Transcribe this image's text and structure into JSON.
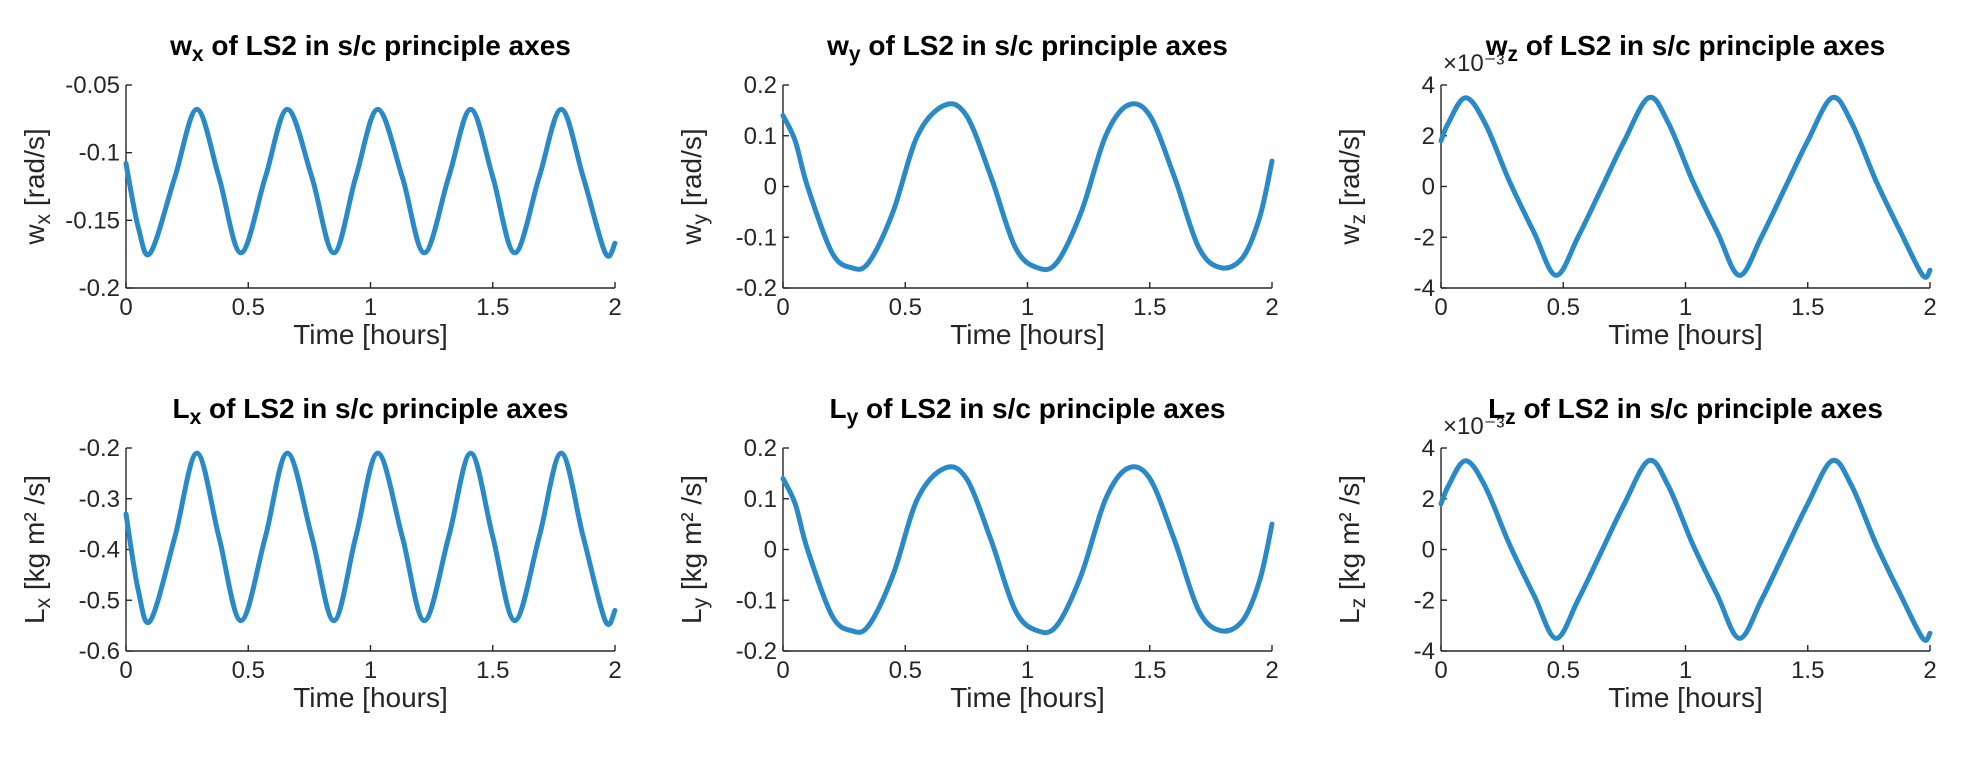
{
  "chart_data": [
    {
      "type": "line",
      "title_main": "w",
      "title_sub": "x",
      "title_rest": " of LS2 in s/c principle axes",
      "ylabel_main": "w",
      "ylabel_sub": "x",
      "ylabel_rest": " [rad/s]",
      "xlabel": "Time [hours]",
      "xlim": [
        0,
        2
      ],
      "ylim": [
        -0.2,
        -0.05
      ],
      "xticks": [
        "0",
        "0.5",
        "1",
        "1.5",
        "2"
      ],
      "yticks": [
        "-0.2",
        "-0.15",
        "-0.1",
        "-0.05"
      ],
      "exponent": "",
      "series": [
        {
          "color": "#2a8ac8",
          "x": [
            0,
            0.05,
            0.1,
            0.2,
            0.29,
            0.38,
            0.47,
            0.57,
            0.66,
            0.76,
            0.85,
            0.94,
            1.03,
            1.13,
            1.22,
            1.32,
            1.41,
            1.5,
            1.59,
            1.69,
            1.78,
            1.87,
            1.96,
            2.0
          ],
          "y": [
            -0.108,
            -0.155,
            -0.174,
            -0.118,
            -0.068,
            -0.118,
            -0.174,
            -0.118,
            -0.068,
            -0.118,
            -0.174,
            -0.118,
            -0.068,
            -0.118,
            -0.174,
            -0.118,
            -0.068,
            -0.118,
            -0.174,
            -0.118,
            -0.068,
            -0.118,
            -0.174,
            -0.167
          ]
        }
      ]
    },
    {
      "type": "line",
      "title_main": "w",
      "title_sub": "y",
      "title_rest": " of LS2 in s/c principle axes",
      "ylabel_main": "w",
      "ylabel_sub": "y",
      "ylabel_rest": " [rad/s]",
      "xlabel": "Time [hours]",
      "xlim": [
        0,
        2
      ],
      "ylim": [
        -0.2,
        0.2
      ],
      "xticks": [
        "0",
        "0.5",
        "1",
        "1.5",
        "2"
      ],
      "yticks": [
        "-0.2",
        "-0.1",
        "0",
        "0.1",
        "0.2"
      ],
      "exponent": "",
      "series": [
        {
          "color": "#2a8ac8",
          "x": [
            0,
            0.05,
            0.1,
            0.2,
            0.28,
            0.35,
            0.45,
            0.55,
            0.66,
            0.75,
            0.85,
            0.95,
            1.04,
            1.12,
            1.22,
            1.32,
            1.41,
            1.5,
            1.6,
            1.7,
            1.79,
            1.88,
            1.95,
            2.0
          ],
          "y": [
            0.14,
            0.09,
            0.0,
            -0.13,
            -0.16,
            -0.15,
            -0.05,
            0.1,
            0.16,
            0.14,
            0.02,
            -0.12,
            -0.16,
            -0.15,
            -0.05,
            0.1,
            0.16,
            0.14,
            0.02,
            -0.12,
            -0.16,
            -0.14,
            -0.06,
            0.05
          ]
        }
      ]
    },
    {
      "type": "line",
      "title_main": "w",
      "title_sub": "z",
      "title_rest": " of LS2 in s/c principle axes",
      "ylabel_main": "w",
      "ylabel_sub": "z",
      "ylabel_rest": " [rad/s]",
      "xlabel": "Time [hours]",
      "xlim": [
        0,
        2
      ],
      "ylim": [
        -4,
        4
      ],
      "xticks": [
        "0",
        "0.5",
        "1",
        "1.5",
        "2"
      ],
      "yticks": [
        "-4",
        "-2",
        "0",
        "2",
        "4"
      ],
      "exponent": "×10⁻³",
      "series": [
        {
          "color": "#2a8ac8",
          "x": [
            0,
            0.03,
            0.1,
            0.18,
            0.28,
            0.38,
            0.47,
            0.56,
            0.66,
            0.75,
            0.85,
            0.93,
            1.03,
            1.13,
            1.22,
            1.31,
            1.41,
            1.5,
            1.6,
            1.68,
            1.78,
            1.88,
            1.97,
            2.0
          ],
          "y": [
            1.8,
            2.5,
            3.5,
            2.5,
            0.2,
            -1.8,
            -3.5,
            -2.0,
            0.0,
            1.8,
            3.5,
            2.5,
            0.2,
            -1.8,
            -3.5,
            -2.0,
            0.0,
            1.8,
            3.5,
            2.5,
            0.2,
            -1.8,
            -3.5,
            -3.3
          ]
        }
      ]
    },
    {
      "type": "line",
      "title_main": "L",
      "title_sub": "x",
      "title_rest": " of LS2 in s/c principle axes",
      "ylabel_main": "L",
      "ylabel_sub": "x",
      "ylabel_rest": " [kg m² /s]",
      "xlabel": "Time [hours]",
      "xlim": [
        0,
        2
      ],
      "ylim": [
        -0.6,
        -0.2
      ],
      "xticks": [
        "0",
        "0.5",
        "1",
        "1.5",
        "2"
      ],
      "yticks": [
        "-0.6",
        "-0.5",
        "-0.4",
        "-0.3",
        "-0.2"
      ],
      "exponent": "",
      "series": [
        {
          "color": "#2a8ac8",
          "x": [
            0,
            0.05,
            0.1,
            0.2,
            0.29,
            0.38,
            0.47,
            0.57,
            0.66,
            0.76,
            0.85,
            0.94,
            1.03,
            1.13,
            1.22,
            1.32,
            1.41,
            1.5,
            1.59,
            1.69,
            1.78,
            1.87,
            1.96,
            2.0
          ],
          "y": [
            -0.33,
            -0.48,
            -0.54,
            -0.375,
            -0.21,
            -0.375,
            -0.54,
            -0.375,
            -0.21,
            -0.375,
            -0.54,
            -0.375,
            -0.21,
            -0.375,
            -0.54,
            -0.375,
            -0.21,
            -0.375,
            -0.54,
            -0.375,
            -0.21,
            -0.375,
            -0.54,
            -0.52
          ]
        }
      ]
    },
    {
      "type": "line",
      "title_main": "L",
      "title_sub": "y",
      "title_rest": " of LS2 in s/c principle axes",
      "ylabel_main": "L",
      "ylabel_sub": "y",
      "ylabel_rest": " [kg m² /s]",
      "xlabel": "Time [hours]",
      "xlim": [
        0,
        2
      ],
      "ylim": [
        -0.2,
        0.2
      ],
      "xticks": [
        "0",
        "0.5",
        "1",
        "1.5",
        "2"
      ],
      "yticks": [
        "-0.2",
        "-0.1",
        "0",
        "0.1",
        "0.2"
      ],
      "exponent": "",
      "series": [
        {
          "color": "#2a8ac8",
          "x": [
            0,
            0.05,
            0.1,
            0.2,
            0.28,
            0.35,
            0.45,
            0.55,
            0.66,
            0.75,
            0.85,
            0.95,
            1.04,
            1.12,
            1.22,
            1.32,
            1.41,
            1.5,
            1.6,
            1.7,
            1.79,
            1.88,
            1.95,
            2.0
          ],
          "y": [
            0.14,
            0.09,
            0.0,
            -0.13,
            -0.16,
            -0.15,
            -0.05,
            0.1,
            0.16,
            0.14,
            0.02,
            -0.12,
            -0.16,
            -0.15,
            -0.05,
            0.1,
            0.16,
            0.14,
            0.02,
            -0.12,
            -0.16,
            -0.14,
            -0.06,
            0.05
          ]
        }
      ]
    },
    {
      "type": "line",
      "title_main": "L",
      "title_sub": "z",
      "title_rest": " of LS2 in s/c principle axes",
      "ylabel_main": "L",
      "ylabel_sub": "z",
      "ylabel_rest": " [kg m² /s]",
      "xlabel": "Time [hours]",
      "xlim": [
        0,
        2
      ],
      "ylim": [
        -4,
        4
      ],
      "xticks": [
        "0",
        "0.5",
        "1",
        "1.5",
        "2"
      ],
      "yticks": [
        "-4",
        "-2",
        "0",
        "2",
        "4"
      ],
      "exponent": "×10⁻³",
      "series": [
        {
          "color": "#2a8ac8",
          "x": [
            0,
            0.03,
            0.1,
            0.18,
            0.28,
            0.38,
            0.47,
            0.56,
            0.66,
            0.75,
            0.85,
            0.93,
            1.03,
            1.13,
            1.22,
            1.31,
            1.41,
            1.5,
            1.6,
            1.68,
            1.78,
            1.88,
            1.97,
            2.0
          ],
          "y": [
            1.8,
            2.5,
            3.5,
            2.5,
            0.2,
            -1.8,
            -3.5,
            -2.0,
            0.0,
            1.8,
            3.5,
            2.5,
            0.2,
            -1.8,
            -3.5,
            -2.0,
            0.0,
            1.8,
            3.5,
            2.5,
            0.2,
            -1.8,
            -3.5,
            -3.3
          ]
        }
      ]
    }
  ]
}
